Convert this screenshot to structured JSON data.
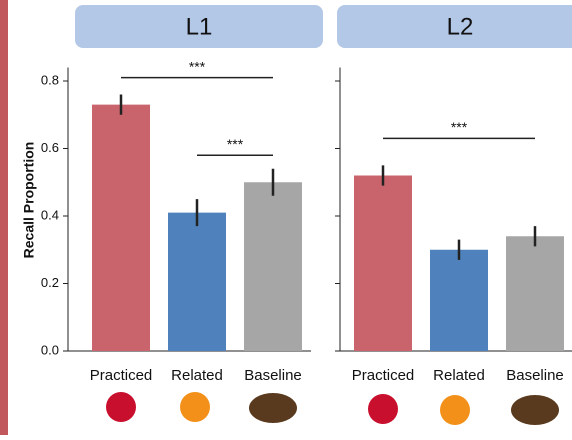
{
  "chart_data": [
    {
      "type": "bar",
      "title": "L1",
      "y_label": "Recall Proportion",
      "categories": [
        "Practiced",
        "Related",
        "Baseline"
      ],
      "values": [
        0.73,
        0.41,
        0.5
      ],
      "errors": [
        0.03,
        0.04,
        0.04
      ],
      "colors": [
        "#c9646c",
        "#4f81bd",
        "#a6a6a6"
      ],
      "ylim": [
        0,
        0.84
      ],
      "yticks": [
        {
          "value": 0,
          "label": "0.0"
        },
        0.2,
        0.4,
        0.6,
        0.8
      ],
      "annotations": [
        {
          "text": "***",
          "y": 0.81,
          "x": [
            0,
            2
          ]
        },
        {
          "text": "***",
          "y": 0.58,
          "x": [
            1,
            2
          ]
        }
      ]
    },
    {
      "type": "bar",
      "title": "L2",
      "categories": [
        "Practiced",
        "Related",
        "Baseline"
      ],
      "values": [
        0.52,
        0.3,
        0.34
      ],
      "errors": [
        0.03,
        0.03,
        0.03
      ],
      "colors": [
        "#c9646c",
        "#4f81bd",
        "#a6a6a6"
      ],
      "ylim": [
        0,
        0.84
      ],
      "yticks": [
        0,
        0.2,
        0.4,
        0.6,
        0.8
      ],
      "annotations": [
        {
          "text": "***",
          "y": 0.63,
          "x": [
            0,
            2
          ]
        }
      ]
    }
  ]
}
